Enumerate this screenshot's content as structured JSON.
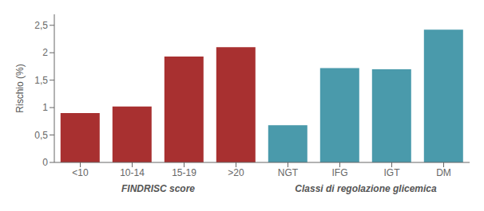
{
  "chart_data": {
    "type": "bar",
    "categories": [
      "<10",
      "10-14",
      "15-19",
      ">20",
      "NGT",
      "IFG",
      "IGT",
      "DM"
    ],
    "series": [
      {
        "name": "FINDRISC score",
        "color": "#a83030",
        "values": [
          0.9,
          1.02,
          1.93,
          2.1,
          null,
          null,
          null,
          null
        ]
      },
      {
        "name": "Classi di regolazione glicemica",
        "color": "#4a9aab",
        "values": [
          null,
          null,
          null,
          null,
          0.68,
          1.72,
          1.7,
          2.42
        ]
      }
    ],
    "ylabel": "Rischio (%)",
    "ylim": [
      0,
      2.7
    ],
    "yticks": [
      0,
      {
        "value": 0.5,
        "label": "0,5"
      },
      1,
      {
        "value": 1.5,
        "label": "1,5"
      },
      2,
      {
        "value": 2.5,
        "label": "2,5"
      }
    ],
    "grid": false
  }
}
